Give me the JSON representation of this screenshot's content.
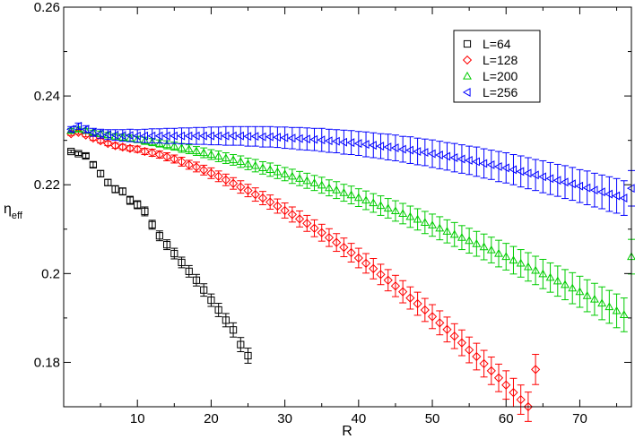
{
  "chart_data": {
    "type": "scatter",
    "title": "",
    "xlabel": "R",
    "ylabel": {
      "main": "η",
      "sub": "eff"
    },
    "xlim": [
      0,
      77
    ],
    "ylim": [
      0.17,
      0.26
    ],
    "xticks": [
      10,
      20,
      30,
      40,
      50,
      60,
      70
    ],
    "yticks": [
      0.18,
      0.2,
      0.22,
      0.24,
      0.26
    ],
    "ytick_labels": [
      "0.18",
      "0.2",
      "0.22",
      "0.24",
      "0.26"
    ],
    "grid": false,
    "legend_position": "top-right",
    "series": [
      {
        "name": "L=64",
        "color": "#000000",
        "marker": "square",
        "x": [
          1,
          2,
          3,
          4,
          5,
          6,
          7,
          8,
          9,
          10,
          11,
          12,
          13,
          14,
          15,
          16,
          17,
          18,
          19,
          20,
          21,
          22,
          23,
          24,
          25
        ],
        "y": [
          0.2275,
          0.227,
          0.2265,
          0.2245,
          0.2225,
          0.2205,
          0.219,
          0.2185,
          0.2165,
          0.2155,
          0.214,
          0.211,
          0.2085,
          0.2065,
          0.2045,
          0.2025,
          0.2005,
          0.1985,
          0.1963,
          0.194,
          0.1918,
          0.1895,
          0.1873,
          0.184,
          0.1815
        ],
        "err": [
          0.0003,
          0.0004,
          0.0005,
          0.0006,
          0.0007,
          0.0007,
          0.0008,
          0.0008,
          0.0009,
          0.0009,
          0.001,
          0.001,
          0.0011,
          0.0011,
          0.0012,
          0.0012,
          0.0013,
          0.0013,
          0.0014,
          0.0014,
          0.0015,
          0.0015,
          0.0016,
          0.0016,
          0.0017
        ]
      },
      {
        "name": "L=128",
        "color": "#ff0000",
        "marker": "diamond",
        "x": [
          1,
          2,
          3,
          4,
          5,
          6,
          7,
          8,
          9,
          10,
          11,
          12,
          13,
          14,
          15,
          16,
          17,
          18,
          19,
          20,
          21,
          22,
          23,
          24,
          25,
          26,
          27,
          28,
          29,
          30,
          31,
          32,
          33,
          34,
          35,
          36,
          37,
          38,
          39,
          40,
          41,
          42,
          43,
          44,
          45,
          46,
          47,
          48,
          49,
          50,
          51,
          52,
          53,
          54,
          55,
          56,
          57,
          58,
          59,
          60,
          61,
          62,
          63,
          64
        ],
        "y": [
          0.2315,
          0.2318,
          0.2312,
          0.2305,
          0.2299,
          0.2293,
          0.2288,
          0.2285,
          0.2282,
          0.228,
          0.2275,
          0.2272,
          0.2268,
          0.2263,
          0.2258,
          0.2252,
          0.2245,
          0.224,
          0.2233,
          0.2226,
          0.2219,
          0.2211,
          0.2203,
          0.2195,
          0.2187,
          0.2178,
          0.217,
          0.2161,
          0.2152,
          0.2142,
          0.2133,
          0.2123,
          0.2113,
          0.2102,
          0.2092,
          0.2081,
          0.207,
          0.2059,
          0.2047,
          0.2035,
          0.2023,
          0.2011,
          0.1998,
          0.1985,
          0.1972,
          0.1959,
          0.1945,
          0.1932,
          0.1918,
          0.1903,
          0.1889,
          0.1874,
          0.1859,
          0.1844,
          0.1828,
          0.1813,
          0.1797,
          0.1781,
          0.1765,
          0.1749,
          0.1732,
          0.1716,
          0.17,
          0.1784
        ],
        "err": [
          0.0004,
          0.0004,
          0.0004,
          0.0005,
          0.0005,
          0.0005,
          0.0006,
          0.0006,
          0.0006,
          0.0007,
          0.0007,
          0.0008,
          0.0008,
          0.0009,
          0.0009,
          0.001,
          0.001,
          0.0011,
          0.0011,
          0.0012,
          0.0012,
          0.0013,
          0.0013,
          0.0014,
          0.0014,
          0.0015,
          0.0015,
          0.0016,
          0.0016,
          0.0017,
          0.0017,
          0.0018,
          0.0018,
          0.0019,
          0.0019,
          0.002,
          0.002,
          0.0021,
          0.0021,
          0.0022,
          0.0022,
          0.0023,
          0.0023,
          0.0024,
          0.0024,
          0.0025,
          0.0025,
          0.0026,
          0.0026,
          0.0027,
          0.0027,
          0.0028,
          0.0028,
          0.0029,
          0.0029,
          0.003,
          0.003,
          0.0031,
          0.0031,
          0.0032,
          0.0032,
          0.0033,
          0.0033,
          0.0034
        ]
      },
      {
        "name": "L=200",
        "color": "#00cc00",
        "marker": "triangle-up",
        "x": [
          1,
          2,
          3,
          4,
          5,
          6,
          7,
          8,
          9,
          10,
          11,
          12,
          13,
          14,
          15,
          16,
          17,
          18,
          19,
          20,
          21,
          22,
          23,
          24,
          25,
          26,
          27,
          28,
          29,
          30,
          31,
          32,
          33,
          34,
          35,
          36,
          37,
          38,
          39,
          40,
          41,
          42,
          43,
          44,
          45,
          46,
          47,
          48,
          49,
          50,
          51,
          52,
          53,
          54,
          55,
          56,
          57,
          58,
          59,
          60,
          61,
          62,
          63,
          64,
          65,
          66,
          67,
          68,
          69,
          70,
          71,
          72,
          73,
          74,
          75,
          76,
          77
        ],
        "y": [
          0.2322,
          0.2325,
          0.2322,
          0.2318,
          0.2315,
          0.2312,
          0.2309,
          0.2307,
          0.2305,
          0.2302,
          0.2299,
          0.2296,
          0.2293,
          0.229,
          0.2287,
          0.2283,
          0.228,
          0.2276,
          0.2272,
          0.2268,
          0.2264,
          0.226,
          0.2256,
          0.2252,
          0.2247,
          0.2243,
          0.2238,
          0.2234,
          0.2229,
          0.2224,
          0.2219,
          0.2214,
          0.2209,
          0.2204,
          0.2199,
          0.2193,
          0.2188,
          0.2182,
          0.2177,
          0.2171,
          0.2165,
          0.2159,
          0.2153,
          0.2147,
          0.2141,
          0.2135,
          0.2128,
          0.2122,
          0.2115,
          0.2109,
          0.2102,
          0.2095,
          0.2088,
          0.2081,
          0.2074,
          0.2067,
          0.206,
          0.2053,
          0.2045,
          0.2038,
          0.203,
          0.2023,
          0.2015,
          0.2007,
          0.1999,
          0.1991,
          0.1983,
          0.1975,
          0.1967,
          0.1959,
          0.195,
          0.1942,
          0.1933,
          0.1925,
          0.1916,
          0.1907,
          0.2038
        ],
        "err": [
          0.0005,
          0.0005,
          0.0005,
          0.0005,
          0.0006,
          0.0006,
          0.0006,
          0.0007,
          0.0007,
          0.0007,
          0.0008,
          0.0008,
          0.0008,
          0.0009,
          0.0009,
          0.001,
          0.001,
          0.001,
          0.0011,
          0.0011,
          0.0012,
          0.0012,
          0.0012,
          0.0013,
          0.0013,
          0.0014,
          0.0014,
          0.0015,
          0.0015,
          0.0015,
          0.0016,
          0.0016,
          0.0017,
          0.0017,
          0.0018,
          0.0018,
          0.0019,
          0.0019,
          0.002,
          0.002,
          0.0021,
          0.0021,
          0.0022,
          0.0022,
          0.0023,
          0.0023,
          0.0024,
          0.0024,
          0.0025,
          0.0025,
          0.0026,
          0.0026,
          0.0027,
          0.0027,
          0.0028,
          0.0028,
          0.0029,
          0.0029,
          0.003,
          0.003,
          0.0031,
          0.0031,
          0.0032,
          0.0032,
          0.0033,
          0.0033,
          0.0034,
          0.0034,
          0.0035,
          0.0035,
          0.0036,
          0.0036,
          0.0037,
          0.0037,
          0.0038,
          0.0038,
          0.0039
        ]
      },
      {
        "name": "L=256",
        "color": "#0000ff",
        "marker": "triangle-left",
        "x": [
          1,
          2,
          3,
          4,
          5,
          6,
          7,
          8,
          9,
          10,
          11,
          12,
          13,
          14,
          15,
          16,
          17,
          18,
          19,
          20,
          21,
          22,
          23,
          24,
          25,
          26,
          27,
          28,
          29,
          30,
          31,
          32,
          33,
          34,
          35,
          36,
          37,
          38,
          39,
          40,
          41,
          42,
          43,
          44,
          45,
          46,
          47,
          48,
          49,
          50,
          51,
          52,
          53,
          54,
          55,
          56,
          57,
          58,
          59,
          60,
          61,
          62,
          63,
          64,
          65,
          66,
          67,
          68,
          69,
          70,
          71,
          72,
          73,
          74,
          75,
          76,
          77
        ],
        "y": [
          0.2325,
          0.2332,
          0.2325,
          0.2318,
          0.2315,
          0.2313,
          0.2312,
          0.2311,
          0.2311,
          0.231,
          0.231,
          0.231,
          0.231,
          0.231,
          0.231,
          0.231,
          0.231,
          0.231,
          0.231,
          0.231,
          0.231,
          0.231,
          0.231,
          0.231,
          0.2309,
          0.2309,
          0.2308,
          0.2308,
          0.2307,
          0.2306,
          0.2305,
          0.2304,
          0.2303,
          0.2302,
          0.2301,
          0.2299,
          0.2298,
          0.2296,
          0.2295,
          0.2293,
          0.2291,
          0.2289,
          0.2287,
          0.2285,
          0.2283,
          0.228,
          0.2278,
          0.2275,
          0.2273,
          0.227,
          0.2267,
          0.2264,
          0.2261,
          0.2258,
          0.2255,
          0.2252,
          0.2248,
          0.2245,
          0.2241,
          0.2238,
          0.2234,
          0.223,
          0.2226,
          0.2222,
          0.2218,
          0.2214,
          0.221,
          0.2206,
          0.2202,
          0.2197,
          0.2193,
          0.2188,
          0.2184,
          0.2179,
          0.2175,
          0.217,
          0.2192
        ],
        "err": [
          0.0006,
          0.0007,
          0.0008,
          0.0009,
          0.001,
          0.0011,
          0.0012,
          0.0013,
          0.0014,
          0.0014,
          0.0015,
          0.0016,
          0.0016,
          0.0017,
          0.0017,
          0.0018,
          0.0018,
          0.0019,
          0.0019,
          0.002,
          0.002,
          0.0021,
          0.0021,
          0.0021,
          0.0022,
          0.0022,
          0.0023,
          0.0023,
          0.0023,
          0.0024,
          0.0024,
          0.0025,
          0.0025,
          0.0025,
          0.0026,
          0.0026,
          0.0026,
          0.0027,
          0.0027,
          0.0027,
          0.0028,
          0.0028,
          0.0028,
          0.0029,
          0.0029,
          0.0029,
          0.003,
          0.003,
          0.003,
          0.0031,
          0.0031,
          0.0031,
          0.0032,
          0.0032,
          0.0032,
          0.0033,
          0.0033,
          0.0033,
          0.0034,
          0.0034,
          0.0034,
          0.0035,
          0.0035,
          0.0035,
          0.0036,
          0.0036,
          0.0036,
          0.0037,
          0.0037,
          0.0037,
          0.0038,
          0.0038,
          0.0038,
          0.0039,
          0.0039,
          0.0039,
          0.004
        ]
      }
    ]
  }
}
